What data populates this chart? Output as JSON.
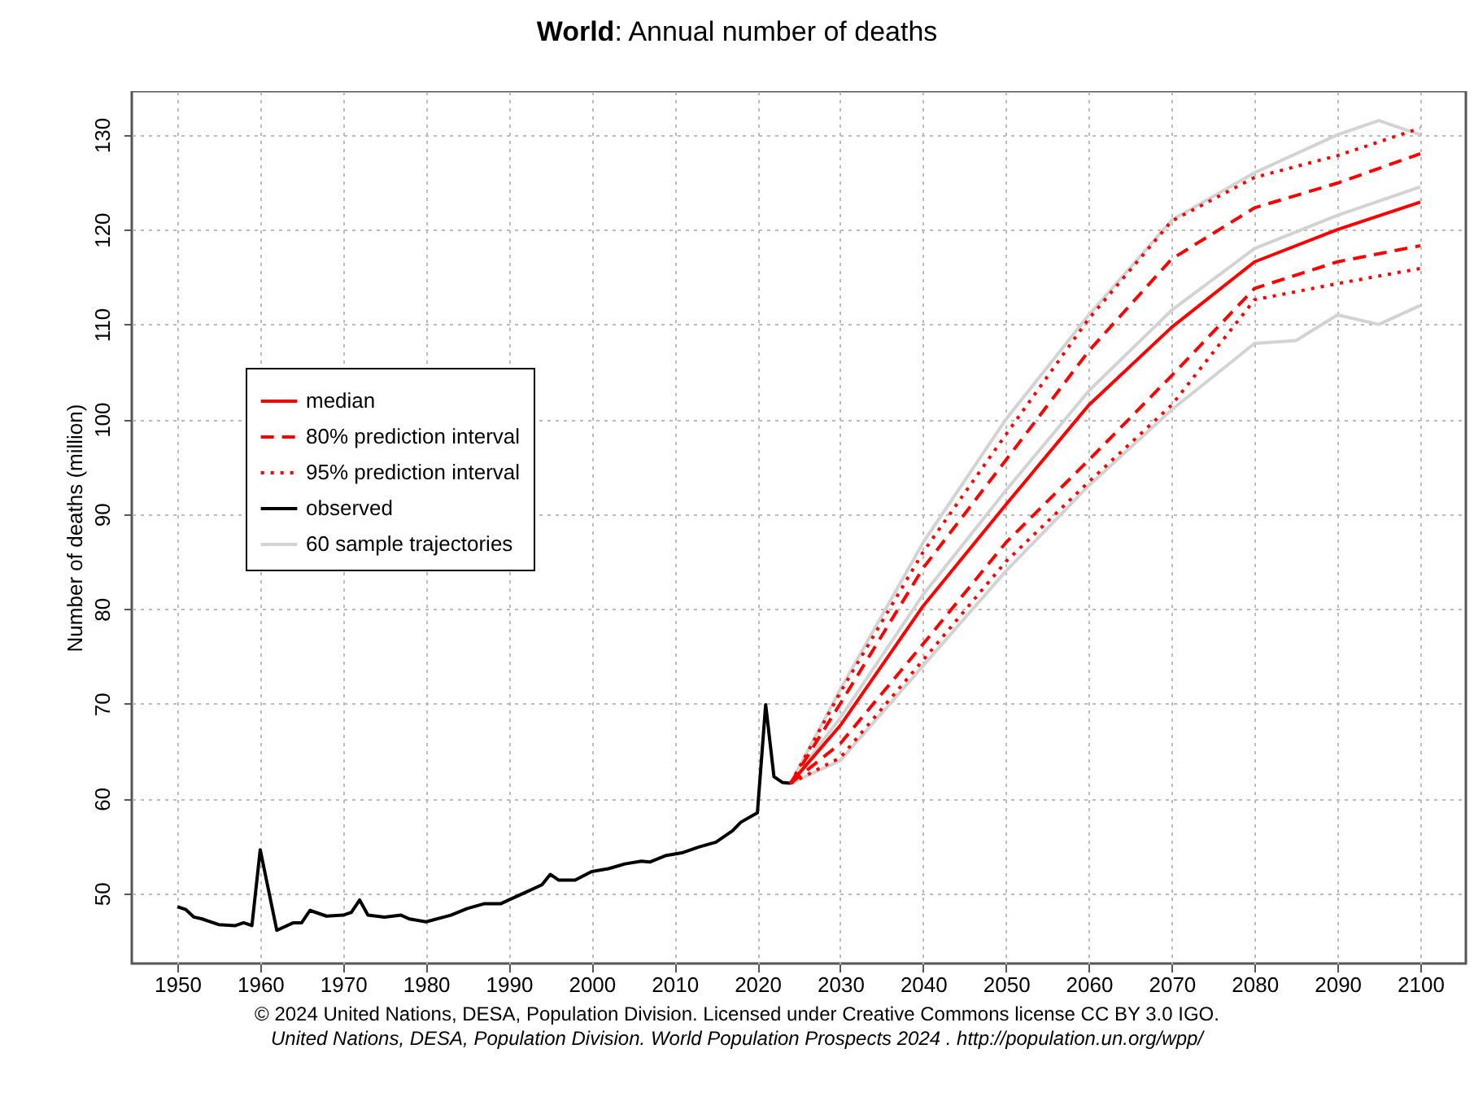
{
  "chart_data": {
    "type": "line",
    "title": "World: Annual number of deaths",
    "ylabel": "Number of deaths (million)",
    "annotations": [
      "© 2024 United Nations, DESA, Population Division. Licensed under Creative Commons license CC BY 3.0 IGO.",
      "United Nations, DESA, Population Division. World Population Prospects 2024 . http://population.un.org/wpp/"
    ],
    "x": [
      2024,
      2030,
      2040,
      2050,
      2060,
      2070,
      2080,
      2090,
      2100
    ],
    "series": [
      {
        "name": "median",
        "color": "#ff0000",
        "line_style": "solid",
        "values": [
          61.6,
          67.7,
          80.3,
          91.0,
          101.5,
          109.7,
          116.6,
          120.0,
          122.9
        ]
      },
      {
        "name": "80% prediction interval",
        "color": "#ff0000",
        "line_style": "dashed",
        "values": [
          61.6,
          70.0,
          84.3,
          95.7,
          107.2,
          116.9,
          122.3,
          124.9,
          128.0
        ]
      },
      {
        "color": "#ff0000",
        "line_style": "dashed",
        "values": [
          61.6,
          65.8,
          76.3,
          87.0,
          95.7,
          104.6,
          113.8,
          116.6,
          118.3
        ]
      },
      {
        "name": "95% prediction interval",
        "color": "#ff0000",
        "line_style": "dotted",
        "values": [
          61.6,
          71.2,
          86.0,
          98.4,
          110.6,
          120.9,
          125.5,
          127.8,
          130.7
        ]
      },
      {
        "color": "#ff0000",
        "line_style": "dotted",
        "values": [
          61.6,
          64.3,
          74.6,
          85.0,
          93.4,
          101.5,
          112.6,
          114.3,
          115.9
        ]
      },
      {
        "name": "observed",
        "color": "#000000",
        "line_style": "solid",
        "x": [
          1950,
          1951,
          1952,
          1953,
          1955,
          1957,
          1958,
          1959,
          1960,
          1962,
          1964,
          1965,
          1966,
          1968,
          1970,
          1971,
          1972,
          1973,
          1975,
          1977,
          1978,
          1980,
          1983,
          1985,
          1987,
          1989,
          1990,
          1992,
          1994,
          1995,
          1996,
          1998,
          2000,
          2002,
          2004,
          2006,
          2007,
          2009,
          2011,
          2013,
          2015,
          2017,
          2018,
          2020,
          2021,
          2022,
          2023,
          2024
        ],
        "values": [
          48.6,
          48.3,
          47.5,
          47.3,
          46.7,
          46.6,
          46.9,
          46.6,
          54.6,
          46.1,
          46.9,
          46.9,
          48.2,
          47.6,
          47.7,
          48.0,
          49.3,
          47.7,
          47.5,
          47.7,
          47.3,
          47.0,
          47.7,
          48.4,
          48.9,
          48.9,
          49.3,
          50.1,
          50.9,
          52.0,
          51.4,
          51.4,
          52.3,
          52.6,
          53.1,
          53.4,
          53.3,
          54.0,
          54.3,
          54.9,
          55.4,
          56.6,
          57.5,
          58.5,
          69.9,
          62.3,
          61.7,
          61.6
        ]
      },
      {
        "name": "60 sample trajectories",
        "color": "#d3d3d3",
        "line_style": "solid",
        "x": [
          2024,
          2030,
          2040,
          2050,
          2060,
          2070,
          2080,
          2090,
          2095,
          2100
        ],
        "values": [
          61.6,
          71.5,
          87.0,
          100.0,
          111.0,
          121.0,
          126.0,
          130.0,
          131.5,
          130.0
        ]
      },
      {
        "color": "#d3d3d3",
        "line_style": "solid",
        "x": [
          2024,
          2030,
          2040,
          2050,
          2060,
          2070,
          2080,
          2085,
          2090,
          2095,
          2100
        ],
        "values": [
          61.6,
          64.0,
          74.0,
          84.0,
          93.0,
          101.0,
          108.0,
          108.3,
          111.0,
          110.0,
          112.0
        ]
      },
      {
        "color": "#d3d3d3",
        "line_style": "solid",
        "x": [
          2024,
          2030,
          2040,
          2050,
          2060,
          2070,
          2080,
          2090,
          2100
        ],
        "values": [
          61.6,
          68.5,
          81.5,
          92.5,
          103.0,
          111.5,
          118.0,
          121.5,
          124.5
        ]
      }
    ],
    "xlim": [
      1944.5,
      2105.5
    ],
    "ylim": [
      42.6,
      134.6
    ],
    "xticks": [
      1950,
      1960,
      1970,
      1980,
      1990,
      2000,
      2010,
      2020,
      2030,
      2040,
      2050,
      2060,
      2070,
      2080,
      2090,
      2100
    ],
    "yticks": [
      50,
      60,
      70,
      80,
      90,
      100,
      110,
      120,
      130
    ],
    "grid": true,
    "legend": "left"
  }
}
